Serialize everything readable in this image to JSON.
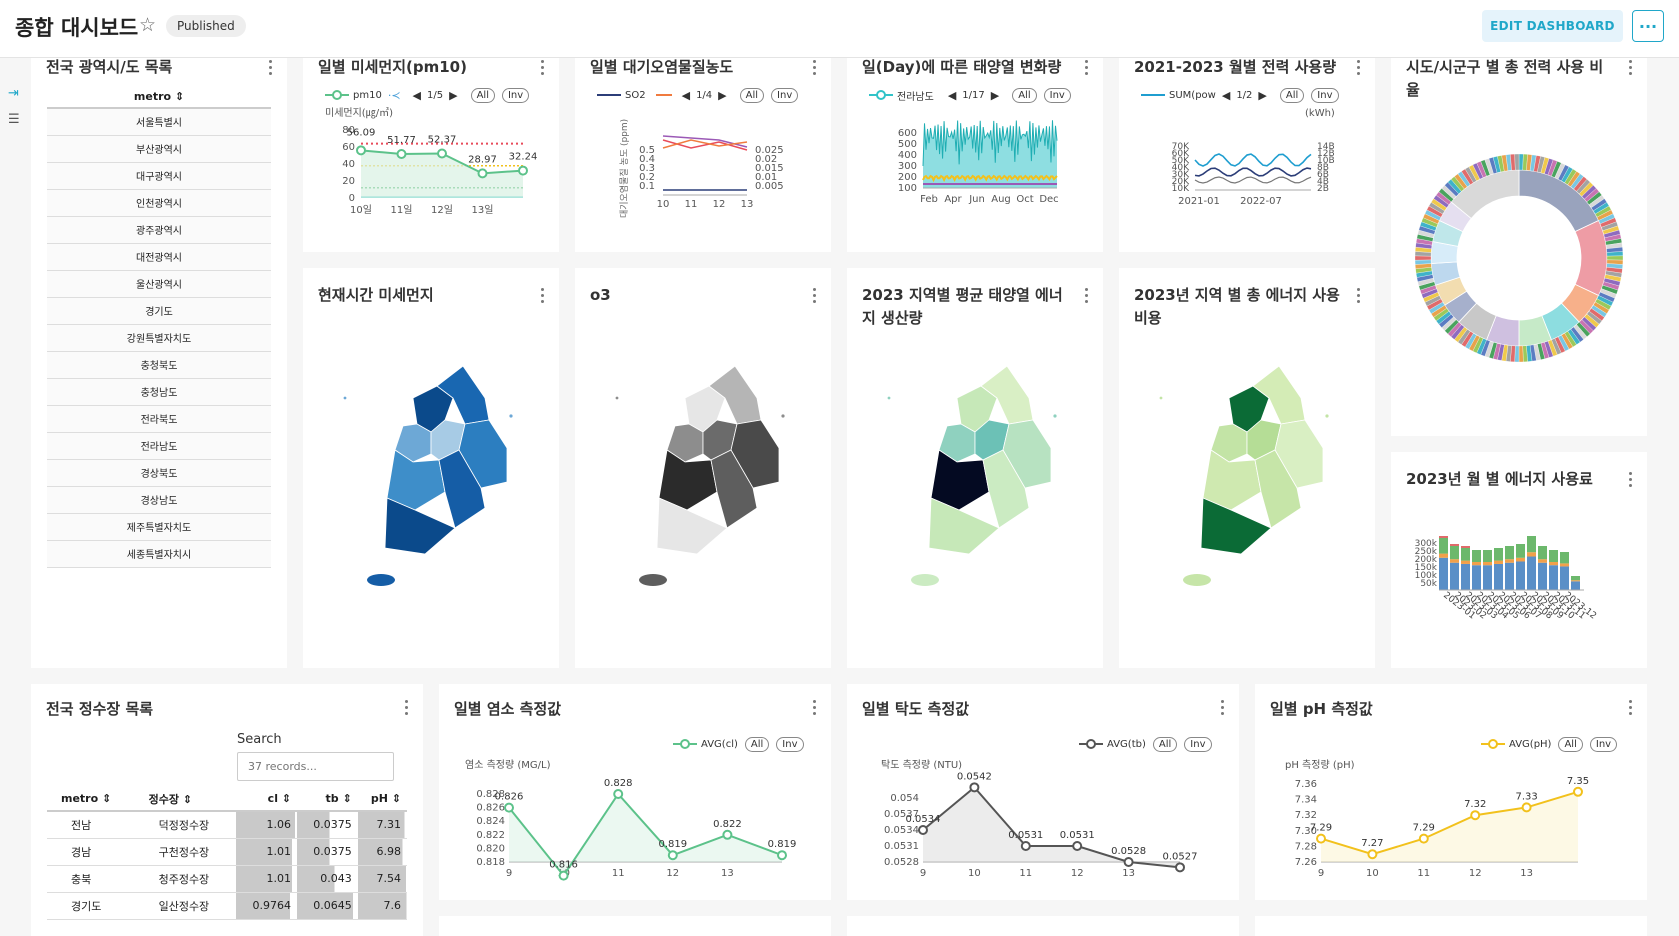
{
  "header": {
    "title": "종합 대시보드",
    "status": "Published",
    "edit_label": "EDIT DASHBOARD",
    "more_label": "···"
  },
  "cards": {
    "metro_list": {
      "title": "전국 광역시/도 목록",
      "column": "metro",
      "rows": [
        "서울특별시",
        "부산광역시",
        "대구광역시",
        "인천광역시",
        "광주광역시",
        "대전광역시",
        "울산광역시",
        "경기도",
        "강원특별자치도",
        "충청북도",
        "충청남도",
        "전라북도",
        "전라남도",
        "경상북도",
        "경상남도",
        "제주특별자치도",
        "세종특별자치시"
      ]
    },
    "pm10": {
      "title": "일별 미세먼지(pm10)",
      "legend": "pm10",
      "page": "1/5",
      "all": "All",
      "inv": "Inv"
    },
    "air": {
      "title": "일별 대기오염물질농도",
      "legend": "SO2",
      "page": "1/4",
      "all": "All",
      "inv": "Inv"
    },
    "solar_daily": {
      "title": "일(Day)에 따른 태양열 변화량",
      "legend": "전라남도",
      "page": "1/17",
      "all": "All",
      "inv": "Inv"
    },
    "power_monthly": {
      "title": "2021-2023 월별 전력 사용량",
      "legend": "SUM(pow",
      "page": "1/2",
      "all": "All",
      "inv": "Inv"
    },
    "power_ratio": {
      "title": "시도/시군구 별 총 전력 사용 비율"
    },
    "pm_now": {
      "title": "현재시간 미세먼지"
    },
    "o3": {
      "title": "o3"
    },
    "solar_region": {
      "title": "2023 지역별 평균 태양열 에너지 생산량"
    },
    "energy_cost": {
      "title": "2023년 지역 별 총 에너지 사용 비용"
    },
    "energy_monthly": {
      "title": "2023년 월 별 에너지 사용료"
    },
    "water_list": {
      "title": "전국 정수장 목록",
      "search_label": "Search",
      "search_placeholder": "37 records...",
      "headers": [
        "metro",
        "정수장",
        "cl",
        "tb",
        "pH"
      ],
      "rows": [
        {
          "metro": "전남",
          "plant": "덕정정수장",
          "cl": "1.06",
          "tb": "0.0375",
          "ph": "7.31"
        },
        {
          "metro": "경남",
          "plant": "구천정수장",
          "cl": "1.01",
          "tb": "0.0375",
          "ph": "6.98"
        },
        {
          "metro": "충북",
          "plant": "청주정수장",
          "cl": "1.01",
          "tb": "0.043",
          "ph": "7.54"
        },
        {
          "metro": "경기도",
          "plant": "일산정수장",
          "cl": "0.9764",
          "tb": "0.0645",
          "ph": "7.6"
        }
      ]
    },
    "cl": {
      "title": "일별 염소 측정값",
      "legend": "AVG(cl)",
      "all": "All",
      "inv": "Inv"
    },
    "tb": {
      "title": "일별 탁도 측정값",
      "legend": "AVG(tb)",
      "all": "All",
      "inv": "Inv"
    },
    "ph": {
      "title": "일별 pH 측정값",
      "legend": "AVG(pH)",
      "all": "All",
      "inv": "Inv"
    }
  },
  "chart_data": [
    {
      "id": "pm10",
      "type": "line",
      "ylabel": "미세먼지(㎍/㎥)",
      "x": [
        "10일",
        "11일",
        "12일",
        "13일",
        ""
      ],
      "values": [
        56.09,
        51.77,
        52.37,
        28.97,
        32.24
      ],
      "ylim": [
        0,
        80
      ],
      "yticks": [
        0,
        20,
        40,
        60,
        80
      ],
      "color": "#5cc28a"
    },
    {
      "id": "air",
      "type": "line",
      "ylabel": "대기오염물질 농도 (ppm)",
      "x": [
        "10",
        "11",
        "12",
        "13"
      ],
      "yticks_left": [
        0.1,
        0.2,
        0.3,
        0.4,
        0.5
      ],
      "yticks_right": [
        0.005,
        0.01,
        0.015,
        0.02,
        0.025
      ]
    },
    {
      "id": "solar",
      "type": "area",
      "x": [
        "Feb",
        "Apr",
        "Jun",
        "Aug",
        "Oct",
        "Dec"
      ],
      "yticks": [
        100,
        200,
        300,
        400,
        500,
        600
      ]
    },
    {
      "id": "power",
      "type": "line",
      "ylabel": "(kWh)",
      "x": [
        "2021-01",
        "2022-07"
      ],
      "yticks_left": [
        "10K",
        "20K",
        "30K",
        "40K",
        "50K",
        "60K",
        "70K"
      ],
      "yticks_right": [
        "2B",
        "4B",
        "6B",
        "8B",
        "10B",
        "12B",
        "14B"
      ]
    },
    {
      "id": "energy",
      "type": "bar",
      "categories": [
        "2023-01",
        "2023-02",
        "2023-03",
        "2023-04",
        "2023-05",
        "2023-06",
        "2023-07",
        "2023-08",
        "2023-09",
        "2023-10",
        "2023-11",
        "2023-12"
      ],
      "yticks": [
        "50k",
        "100k",
        "150k",
        "200k",
        "250k",
        "300k"
      ]
    },
    {
      "id": "cl",
      "type": "area",
      "ylabel": "염소 측정량 (MG/L)",
      "x": [
        "9",
        "10",
        "11",
        "12",
        "13",
        ""
      ],
      "values": [
        0.826,
        0.816,
        0.828,
        0.819,
        0.822,
        0.819
      ],
      "yticks": [
        "0.818",
        "0.820",
        "0.822",
        "0.824",
        "0.826",
        "0.828"
      ],
      "color": "#5cc28a"
    },
    {
      "id": "tb",
      "type": "area",
      "ylabel": "탁도 측정량 (NTU)",
      "x": [
        "9",
        "10",
        "11",
        "12",
        "13",
        ""
      ],
      "values": [
        0.0534,
        0.0542,
        0.0531,
        0.0531,
        0.0528,
        0.0527
      ],
      "yticks": [
        "0.0528",
        "0.0531",
        "0.0534",
        "0.0537",
        "0.054"
      ],
      "color": "#555555"
    },
    {
      "id": "ph",
      "type": "area",
      "ylabel": "pH 측정량 (pH)",
      "x": [
        "9",
        "10",
        "11",
        "12",
        "13",
        ""
      ],
      "values": [
        7.29,
        7.27,
        7.29,
        7.32,
        7.33,
        7.35
      ],
      "yticks": [
        "7.26",
        "7.28",
        "7.30",
        "7.32",
        "7.34",
        "7.36"
      ],
      "color": "#f2c11c"
    }
  ]
}
